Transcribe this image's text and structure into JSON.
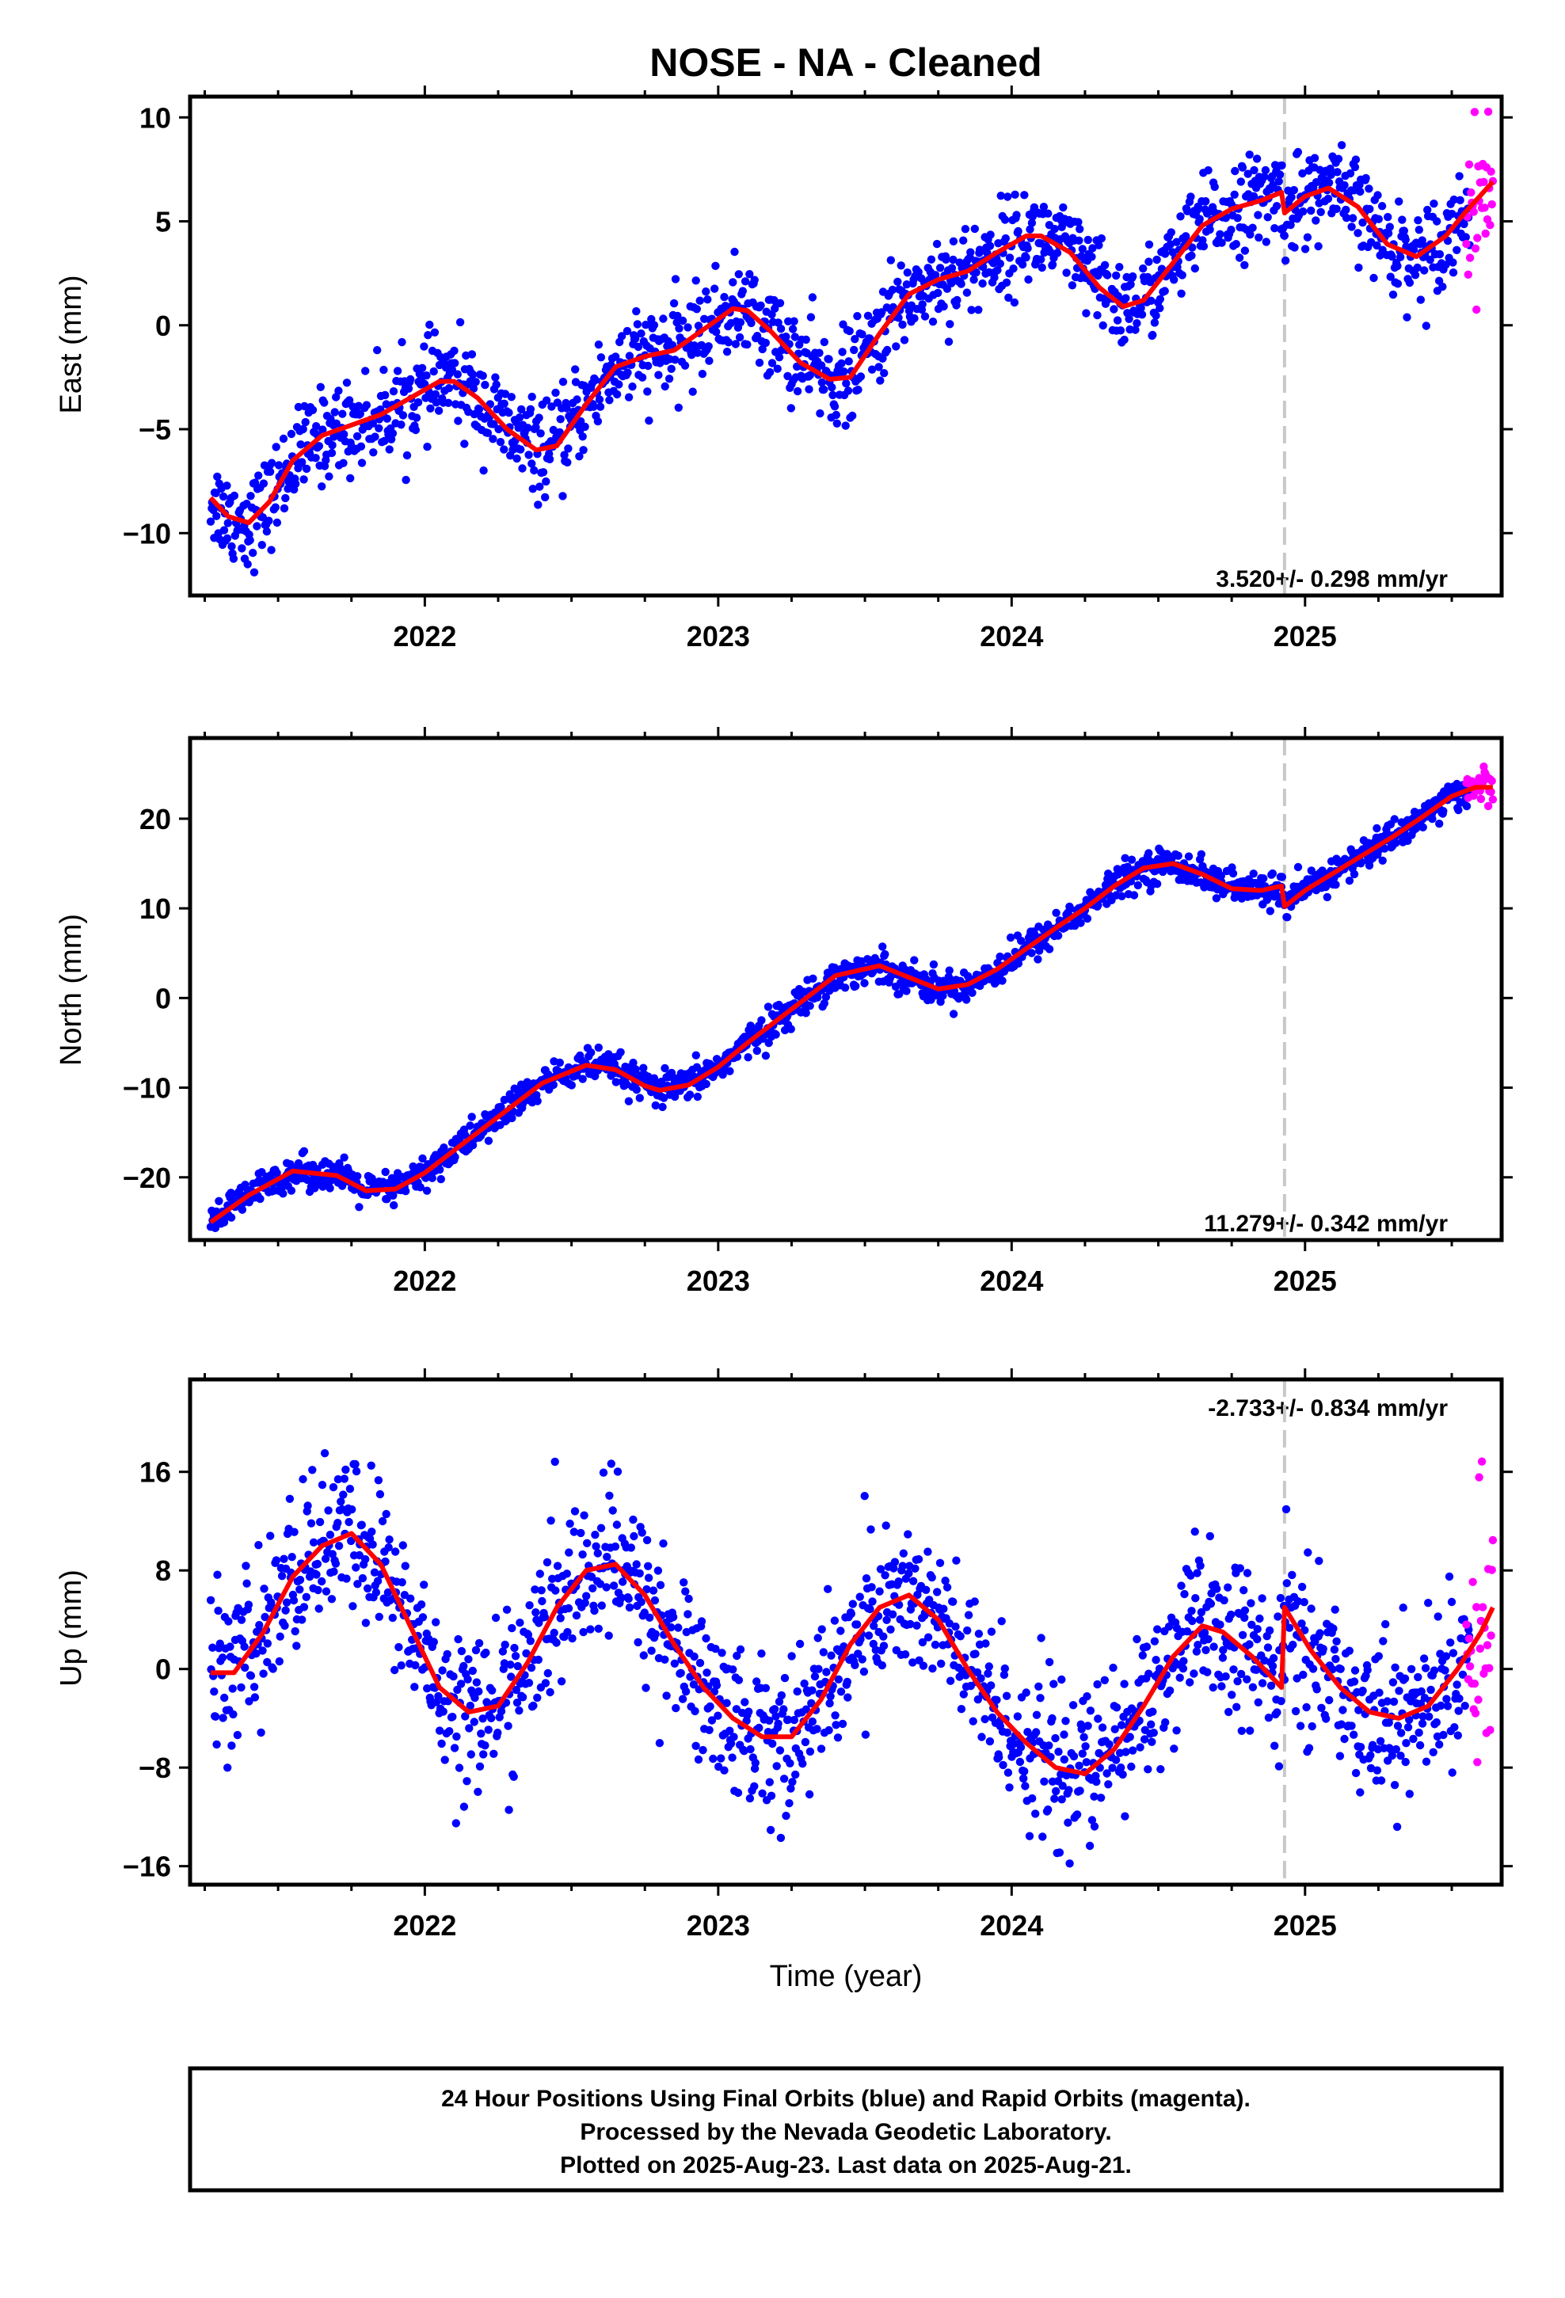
{
  "title": "NOSE  - NA - Cleaned",
  "xlabel": "Time (year)",
  "caption_lines": [
    "24 Hour Positions Using Final Orbits (blue) and Rapid Orbits (magenta).",
    "Processed by the Nevada Geodetic Laboratory.",
    "Plotted on 2025-Aug-23. Last data on 2025-Aug-21."
  ],
  "colors": {
    "final": "#0000ff",
    "rapid": "#ff00ff",
    "model": "#ff0000",
    "offset_line": "#c8c8c8",
    "axes": "#000000"
  },
  "chart_data": [
    {
      "type": "scatter",
      "component": "east",
      "ylabel": "East (mm)",
      "rate_label": "3.520+/- 0.298 mm/yr",
      "xlim": [
        2021.2,
        2025.67
      ],
      "ylim": [
        -13,
        11
      ],
      "yticks": [
        10,
        5,
        0,
        -5,
        -10
      ],
      "ytick_labels": [
        "10",
        "5",
        "0",
        "−5",
        "−10"
      ],
      "xticks": [
        2022,
        2023,
        2024,
        2025
      ],
      "xtick_labels": [
        "2022",
        "2023",
        "2024",
        "2025"
      ],
      "offset_epoch": 2024.93,
      "data_start": 2021.27,
      "data_end": 2025.64,
      "rapid_start": 2025.55,
      "trend_mm_per_yr": 3.52,
      "model": {
        "name": "fit",
        "x": [
          2021.27,
          2021.33,
          2021.4,
          2021.47,
          2021.55,
          2021.65,
          2021.75,
          2021.85,
          2021.95,
          2022.05,
          2022.1,
          2022.18,
          2022.28,
          2022.38,
          2022.45,
          2022.55,
          2022.65,
          2022.75,
          2022.85,
          2022.95,
          2023.05,
          2023.1,
          2023.18,
          2023.28,
          2023.38,
          2023.45,
          2023.55,
          2023.65,
          2023.75,
          2023.85,
          2023.95,
          2024.05,
          2024.1,
          2024.2,
          2024.3,
          2024.38,
          2024.45,
          2024.55,
          2024.65,
          2024.75,
          2024.85,
          2024.92,
          2024.93,
          2025.0,
          2025.08,
          2025.18,
          2025.28,
          2025.38,
          2025.48,
          2025.55,
          2025.64
        ],
        "y": [
          -8.3,
          -9.2,
          -9.5,
          -8.5,
          -6.5,
          -5.3,
          -4.8,
          -4.3,
          -3.5,
          -2.7,
          -2.7,
          -3.5,
          -5.0,
          -6.0,
          -5.8,
          -3.8,
          -2.0,
          -1.5,
          -1.2,
          -0.2,
          0.8,
          0.7,
          -0.3,
          -1.8,
          -2.6,
          -2.5,
          -0.4,
          1.5,
          2.2,
          2.6,
          3.5,
          4.3,
          4.3,
          3.5,
          1.8,
          0.9,
          1.2,
          3.0,
          4.8,
          5.6,
          6.0,
          6.4,
          5.4,
          6.2,
          6.6,
          5.7,
          3.9,
          3.3,
          4.3,
          5.5,
          6.9
        ]
      },
      "series": [
        {
          "name": "Final Orbits (blue)",
          "x_range": [
            2021.27,
            2025.56
          ],
          "count": 1500,
          "scatter_mm": 1.1
        },
        {
          "name": "Rapid Orbits (magenta)",
          "x_range": [
            2025.55,
            2025.64
          ],
          "count": 30,
          "scatter_mm": 1.8
        }
      ]
    },
    {
      "type": "scatter",
      "component": "north",
      "ylabel": "North (mm)",
      "rate_label": "11.279+/- 0.342 mm/yr",
      "xlim": [
        2021.2,
        2025.67
      ],
      "ylim": [
        -27,
        29
      ],
      "yticks": [
        20,
        10,
        0,
        -10,
        -20
      ],
      "ytick_labels": [
        "20",
        "10",
        "0",
        "−10",
        "−20"
      ],
      "xticks": [
        2022,
        2023,
        2024,
        2025
      ],
      "xtick_labels": [
        "2022",
        "2023",
        "2024",
        "2025"
      ],
      "offset_epoch": 2024.93,
      "data_start": 2021.27,
      "data_end": 2025.64,
      "rapid_start": 2025.55,
      "trend_mm_per_yr": 11.279,
      "model": {
        "name": "fit",
        "x": [
          2021.27,
          2021.4,
          2021.55,
          2021.7,
          2021.8,
          2021.9,
          2022.0,
          2022.1,
          2022.2,
          2022.3,
          2022.4,
          2022.55,
          2022.65,
          2022.75,
          2022.8,
          2022.9,
          2023.0,
          2023.1,
          2023.2,
          2023.3,
          2023.4,
          2023.55,
          2023.65,
          2023.75,
          2023.85,
          2023.95,
          2024.05,
          2024.15,
          2024.25,
          2024.35,
          2024.45,
          2024.55,
          2024.65,
          2024.75,
          2024.85,
          2024.92,
          2024.93,
          2025.0,
          2025.1,
          2025.2,
          2025.3,
          2025.4,
          2025.5,
          2025.58,
          2025.64
        ],
        "y": [
          -25.0,
          -22.0,
          -19.3,
          -19.8,
          -21.5,
          -21.3,
          -19.5,
          -17.0,
          -14.5,
          -12.0,
          -9.5,
          -7.5,
          -8.0,
          -9.8,
          -10.3,
          -9.7,
          -7.7,
          -5.0,
          -2.5,
          0.0,
          2.5,
          3.6,
          2.3,
          1.0,
          1.5,
          3.2,
          5.5,
          7.8,
          10.0,
          12.5,
          14.5,
          15.0,
          13.8,
          12.2,
          12.0,
          12.5,
          10.2,
          12.0,
          14.0,
          16.0,
          18.0,
          20.2,
          22.5,
          23.5,
          23.5
        ]
      },
      "series": [
        {
          "name": "Final Orbits (blue)",
          "x_range": [
            2021.27,
            2025.56
          ],
          "count": 1500,
          "scatter_mm": 0.9
        },
        {
          "name": "Rapid Orbits (magenta)",
          "x_range": [
            2025.55,
            2025.64
          ],
          "count": 30,
          "scatter_mm": 1.2
        }
      ]
    },
    {
      "type": "scatter",
      "component": "up",
      "ylabel": "Up (mm)",
      "rate_label": "-2.733+/- 0.834 mm/yr",
      "xlim": [
        2021.2,
        2025.67
      ],
      "ylim": [
        -17.5,
        23.5
      ],
      "yticks": [
        16,
        8,
        0,
        -8,
        -16
      ],
      "ytick_labels": [
        "16",
        "8",
        "0",
        "−8",
        "−16"
      ],
      "xticks": [
        2022,
        2023,
        2024,
        2025
      ],
      "xtick_labels": [
        "2022",
        "2023",
        "2024",
        "2025"
      ],
      "offset_epoch": 2024.93,
      "data_start": 2021.27,
      "data_end": 2025.64,
      "rapid_start": 2025.55,
      "trend_mm_per_yr": -2.733,
      "model": {
        "name": "fit",
        "x": [
          2021.27,
          2021.35,
          2021.45,
          2021.55,
          2021.65,
          2021.75,
          2021.85,
          2021.95,
          2022.05,
          2022.15,
          2022.25,
          2022.35,
          2022.45,
          2022.55,
          2022.65,
          2022.75,
          2022.85,
          2022.95,
          2023.05,
          2023.15,
          2023.25,
          2023.35,
          2023.45,
          2023.55,
          2023.65,
          2023.75,
          2023.85,
          2023.95,
          2024.05,
          2024.15,
          2024.25,
          2024.35,
          2024.45,
          2024.55,
          2024.65,
          2024.72,
          2024.82,
          2024.92,
          2024.93,
          2025.02,
          2025.12,
          2025.22,
          2025.32,
          2025.42,
          2025.52,
          2025.6,
          2025.64
        ],
        "y": [
          -0.3,
          -0.3,
          3.0,
          7.5,
          10.0,
          11.0,
          8.5,
          3.5,
          -1.5,
          -3.5,
          -3.0,
          0.5,
          5.0,
          8.0,
          8.5,
          6.0,
          2.0,
          -1.5,
          -4.0,
          -5.5,
          -5.5,
          -2.5,
          2.0,
          5.0,
          6.0,
          4.0,
          0.0,
          -3.5,
          -6.0,
          -8.0,
          -8.5,
          -6.5,
          -3.0,
          1.0,
          3.5,
          3.0,
          1.0,
          -1.5,
          5.0,
          1.5,
          -1.5,
          -3.5,
          -4.0,
          -3.0,
          0.0,
          3.0,
          5.0
        ]
      },
      "series": [
        {
          "name": "Final Orbits (blue)",
          "x_range": [
            2021.27,
            2025.56
          ],
          "count": 1500,
          "scatter_mm": 3.2
        },
        {
          "name": "Rapid Orbits (magenta)",
          "x_range": [
            2025.55,
            2025.64
          ],
          "count": 30,
          "scatter_mm": 5.0
        }
      ]
    }
  ]
}
